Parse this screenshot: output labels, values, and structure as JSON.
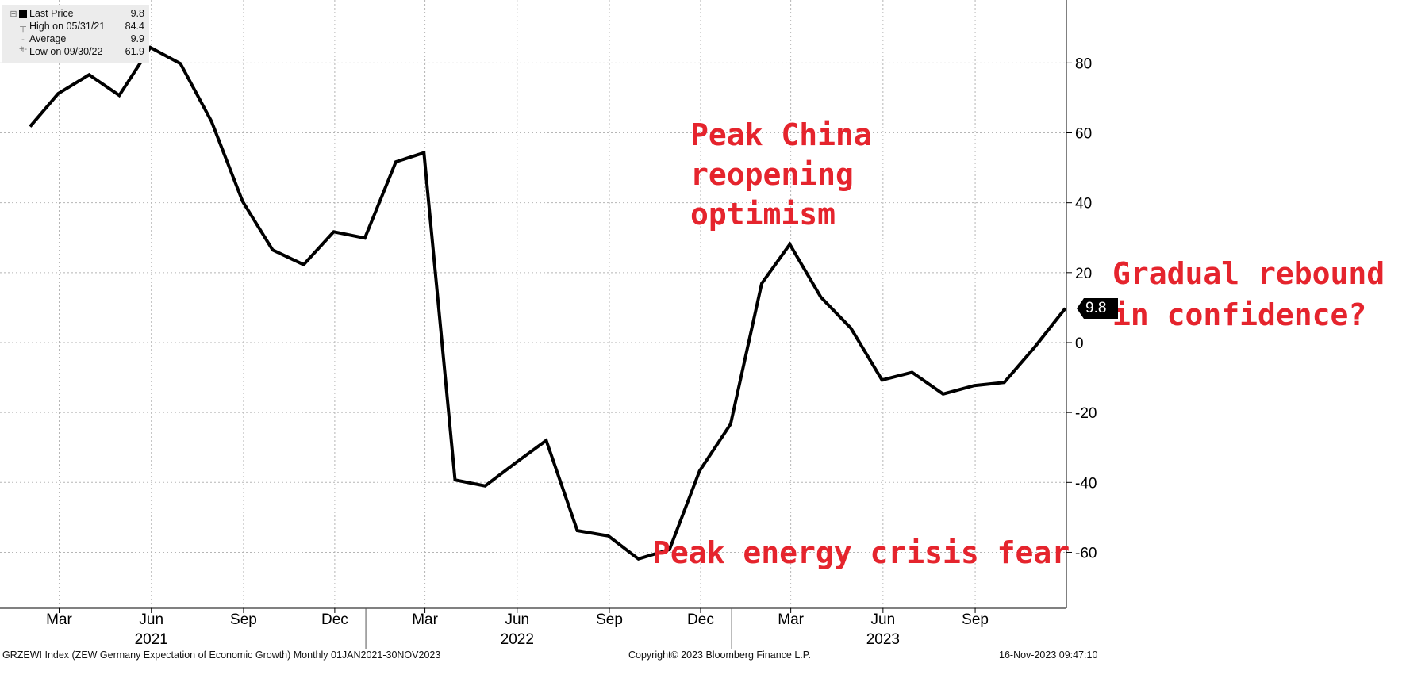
{
  "chart_data": {
    "type": "line",
    "x": [
      "2021-01-31",
      "2021-02-28",
      "2021-03-31",
      "2021-04-30",
      "2021-05-31",
      "2021-06-30",
      "2021-07-31",
      "2021-08-31",
      "2021-09-30",
      "2021-10-31",
      "2021-11-30",
      "2021-12-31",
      "2022-01-31",
      "2022-02-28",
      "2022-03-31",
      "2022-04-30",
      "2022-05-31",
      "2022-06-30",
      "2022-07-31",
      "2022-08-31",
      "2022-09-30",
      "2022-10-31",
      "2022-11-30",
      "2022-12-31",
      "2023-01-31",
      "2023-02-28",
      "2023-03-31",
      "2023-04-30",
      "2023-05-31",
      "2023-06-30",
      "2023-07-31",
      "2023-08-31",
      "2023-09-30",
      "2023-10-31",
      "2023-11-30"
    ],
    "series": [
      {
        "name": "Last Price",
        "values": [
          61.8,
          71.2,
          76.6,
          70.7,
          84.4,
          79.8,
          63.3,
          40.4,
          26.5,
          22.3,
          31.7,
          29.9,
          51.7,
          54.3,
          -39.3,
          -41.0,
          -34.3,
          -28.0,
          -53.8,
          -55.3,
          -61.9,
          -59.2,
          -36.7,
          -23.3,
          16.9,
          28.1,
          13.0,
          4.1,
          -10.7,
          -8.5,
          -14.7,
          -12.3,
          -11.4,
          -1.1,
          9.8
        ]
      }
    ],
    "title": "",
    "xlabel": "",
    "ylabel": "",
    "ylim": [
      -76,
      98
    ],
    "yticks": [
      -60,
      -40,
      -20,
      0,
      20,
      40,
      60,
      80
    ],
    "ytick_labels": [
      "-60",
      "-40",
      "-20",
      "0",
      "20",
      "40",
      "60",
      "80"
    ],
    "x_axis_labels": [
      {
        "date": "2021-03-01",
        "label": "Mar"
      },
      {
        "date": "2021-06-01",
        "label": "Jun"
      },
      {
        "date": "2021-09-01",
        "label": "Sep"
      },
      {
        "date": "2021-12-01",
        "label": "Dec"
      },
      {
        "date": "2022-03-01",
        "label": "Mar"
      },
      {
        "date": "2022-06-01",
        "label": "Jun"
      },
      {
        "date": "2022-09-01",
        "label": "Sep"
      },
      {
        "date": "2022-12-01",
        "label": "Dec"
      },
      {
        "date": "2023-03-01",
        "label": "Mar"
      },
      {
        "date": "2023-06-01",
        "label": "Jun"
      },
      {
        "date": "2023-09-01",
        "label": "Sep"
      }
    ],
    "year_labels": [
      {
        "date": "2021-06-01",
        "label": "2021"
      },
      {
        "date": "2022-06-01",
        "label": "2022"
      },
      {
        "date": "2023-06-01",
        "label": "2023"
      }
    ],
    "year_boundaries": [
      "2022-01-01",
      "2023-01-01"
    ],
    "grid": true,
    "line_color": "#000000",
    "annotation_color": "#e5242d",
    "legend_position": "top-left",
    "last_value_label": "9.8",
    "annotations": [
      {
        "lines": [
          "Peak China",
          "reopening",
          "optimism"
        ]
      },
      {
        "lines": [
          "Gradual rebound",
          "in confidence?"
        ]
      },
      {
        "lines": [
          "Peak energy crisis fear"
        ]
      }
    ]
  },
  "legend": {
    "items": [
      {
        "icon": "square-icon",
        "label": "Last Price",
        "value": "9.8"
      },
      {
        "icon": "high-marker-icon",
        "label": "High on 05/31/21",
        "value": "84.4"
      },
      {
        "icon": "average-marker-icon",
        "label": "Average",
        "value": "9.9"
      },
      {
        "icon": "low-marker-icon",
        "label": "Low on 09/30/22",
        "value": "-61.9"
      }
    ]
  },
  "footer": {
    "left": "GRZEWI Index (ZEW Germany Expectation of Economic Growth)  Monthly 01JAN2021-30NOV2023",
    "center": "Copyright© 2023 Bloomberg Finance L.P.",
    "right": "16-Nov-2023 09:47:10"
  }
}
